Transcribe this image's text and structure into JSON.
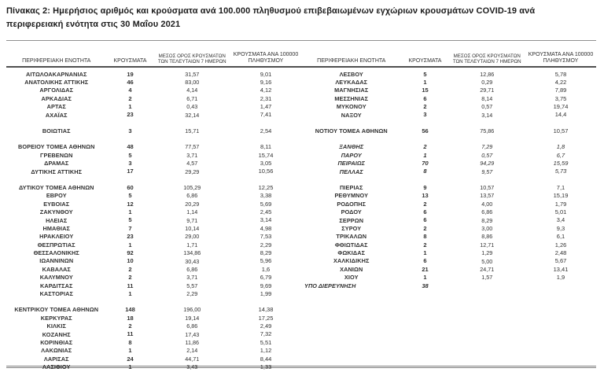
{
  "title": "Πίνακας 2: Ημερήσιος αριθμός και κρούσματα ανά 100.000 πληθυσμού επιβεβαιωμένων εγχώριων κρουσμάτων COVID-19 ανά περιφερειακή ενότητα στις 30 Μαΐου 2021",
  "columns": {
    "region": "ΠΕΡΙΦΕΡΕΙΑΚΗ ΕΝΟΤΗΤΑ",
    "cases": "ΚΡΟΥΣΜΑΤΑ",
    "avg7": "ΜΕΣΟΣ ΟΡΟΣ ΚΡΟΥΣΜΑΤΩΝ ΤΩΝ ΤΕΛΕΥΤΑΙΩΝ 7 ΗΜΕΡΩΝ",
    "per100k": "ΚΡΟΥΣΜΑΤΑ ΑΝΑ 100000 ΠΛΗΘΥΣΜΟΥ"
  },
  "left_panel": {
    "groups": [
      [
        [
          "ΑΙΤΩΛΟΑΚΑΡΝΑΝΙΑΣ",
          "19",
          "31,57",
          "9,01"
        ],
        [
          "ΑΝΑΤΟΛΙΚΗΣ ΑΤΤΙΚΗΣ",
          "46",
          "83,00",
          "9,16"
        ],
        [
          "ΑΡΓΟΛΙΔΑΣ",
          "4",
          "4,14",
          "4,12"
        ],
        [
          "ΑΡΚΑΔΙΑΣ",
          "2",
          "6,71",
          "2,31"
        ],
        [
          "ΑΡΤΑΣ",
          "1",
          "0,43",
          "1,47"
        ],
        [
          "ΑΧΑΪΑΣ",
          "23",
          "32,14",
          "7,41"
        ]
      ],
      [
        [
          "ΒΟΙΩΤΙΑΣ",
          "3",
          "15,71",
          "2,54"
        ]
      ],
      [
        [
          "ΒΟΡΕΙΟΥ ΤΟΜΕΑ ΑΘΗΝΩΝ",
          "48",
          "77,57",
          "8,11"
        ],
        [
          "ΓΡΕΒΕΝΩΝ",
          "5",
          "3,71",
          "15,74"
        ],
        [
          "ΔΡΑΜΑΣ",
          "3",
          "4,57",
          "3,05"
        ],
        [
          "ΔΥΤΙΚΗΣ ΑΤΤΙΚΗΣ",
          "17",
          "29,29",
          "10,56"
        ]
      ],
      [
        [
          "ΔΥΤΙΚΟΥ ΤΟΜΕΑ ΑΘΗΝΩΝ",
          "60",
          "105,29",
          "12,25"
        ],
        [
          "ΕΒΡΟΥ",
          "5",
          "6,86",
          "3,38"
        ],
        [
          "ΕΥΒΟΙΑΣ",
          "12",
          "20,29",
          "5,69"
        ],
        [
          "ΖΑΚΥΝΘΟΥ",
          "1",
          "1,14",
          "2,45"
        ],
        [
          "ΗΛΕΙΑΣ",
          "5",
          "9,71",
          "3,14"
        ],
        [
          "ΗΜΑΘΙΑΣ",
          "7",
          "10,14",
          "4,98"
        ],
        [
          "ΗΡΑΚΛΕΙΟΥ",
          "23",
          "29,00",
          "7,53"
        ],
        [
          "ΘΕΣΠΡΩΤΙΑΣ",
          "1",
          "1,71",
          "2,29"
        ],
        [
          "ΘΕΣΣΑΛΟΝΙΚΗΣ",
          "92",
          "134,86",
          "8,29"
        ],
        [
          "ΙΩΑΝΝΙΝΩΝ",
          "10",
          "30,43",
          "5,96"
        ],
        [
          "ΚΑΒΑΛΑΣ",
          "2",
          "6,86",
          "1,6"
        ],
        [
          "ΚΑΛΥΜΝΟΥ",
          "2",
          "3,71",
          "6,79"
        ],
        [
          "ΚΑΡΔΙΤΣΑΣ",
          "11",
          "5,57",
          "9,69"
        ],
        [
          "ΚΑΣΤΟΡΙΑΣ",
          "1",
          "2,29",
          "1,99"
        ]
      ],
      [
        [
          "ΚΕΝΤΡΙΚΟΥ ΤΟΜΕΑ ΑΘΗΝΩΝ",
          "148",
          "196,00",
          "14,38"
        ],
        [
          "ΚΕΡΚΥΡΑΣ",
          "18",
          "19,14",
          "17,25"
        ],
        [
          "ΚΙΛΚΙΣ",
          "2",
          "6,86",
          "2,49"
        ],
        [
          "ΚΟΖΑΝΗΣ",
          "11",
          "17,43",
          "7,32"
        ],
        [
          "ΚΟΡΙΝΘΙΑΣ",
          "8",
          "11,86",
          "5,51"
        ],
        [
          "ΛΑΚΩΝΙΑΣ",
          "1",
          "2,14",
          "1,12"
        ],
        [
          "ΛΑΡΙΣΑΣ",
          "24",
          "44,71",
          "8,44"
        ],
        [
          "ΛΑΣΙΘΙΟΥ",
          "1",
          "3,43",
          "1,33"
        ]
      ]
    ]
  },
  "right_panel": {
    "groups": [
      [
        [
          "ΛΕΣΒΟΥ",
          "5",
          "12,86",
          "5,78"
        ],
        [
          "ΛΕΥΚΑΔΑΣ",
          "1",
          "0,29",
          "4,22"
        ],
        [
          "ΜΑΓΝΗΣΙΑΣ",
          "15",
          "29,71",
          "7,89"
        ],
        [
          "ΜΕΣΣΗΝΙΑΣ",
          "6",
          "8,14",
          "3,75"
        ],
        [
          "ΜΥΚΟΝΟΥ",
          "2",
          "0,57",
          "19,74"
        ],
        [
          "ΝΑΞΟΥ",
          "3",
          "3,14",
          "14,4"
        ]
      ],
      [
        [
          "ΝΟΤΙΟΥ ΤΟΜΕΑ ΑΘΗΝΩΝ",
          "56",
          "75,86",
          "10,57"
        ]
      ],
      [
        [
          "ΞΑΝΘΗΣ",
          "2",
          "7,29",
          "1,8",
          "italic"
        ],
        [
          "ΠΑΡΟΥ",
          "1",
          "0,57",
          "6,7",
          "italic"
        ],
        [
          "ΠΕΙΡΑΙΩΣ",
          "70",
          "94,29",
          "15,59",
          "italic"
        ],
        [
          "ΠΕΛΛΑΣ",
          "8",
          "9,57",
          "5,73",
          "italic"
        ]
      ],
      [
        [
          "ΠΙΕΡΙΑΣ",
          "9",
          "10,57",
          "7,1"
        ],
        [
          "ΡΕΘΥΜΝΟΥ",
          "13",
          "13,57",
          "15,19"
        ],
        [
          "ΡΟΔΟΠΗΣ",
          "2",
          "4,00",
          "1,79"
        ],
        [
          "ΡΟΔΟΥ",
          "6",
          "6,86",
          "5,01"
        ],
        [
          "ΣΕΡΡΩΝ",
          "6",
          "8,29",
          "3,4"
        ],
        [
          "ΣΥΡΟΥ",
          "2",
          "3,00",
          "9,3"
        ],
        [
          "ΤΡΙΚΑΛΩΝ",
          "8",
          "8,86",
          "6,1"
        ],
        [
          "ΦΘΙΩΤΙΔΑΣ",
          "2",
          "12,71",
          "1,26"
        ],
        [
          "ΦΩΚΙΔΑΣ",
          "1",
          "1,29",
          "2,48"
        ],
        [
          "ΧΑΛΚΙΔΙΚΗΣ",
          "6",
          "5,00",
          "5,67"
        ],
        [
          "ΧΑΝΙΩΝ",
          "21",
          "24,71",
          "13,41"
        ],
        [
          "ΧΙΟΥ",
          "1",
          "1,57",
          "1,9"
        ],
        [
          "ΥΠΟ ΔΙΕΡΕΥΝΗΣΗ",
          "38",
          "",
          "",
          "italic left"
        ]
      ]
    ]
  }
}
